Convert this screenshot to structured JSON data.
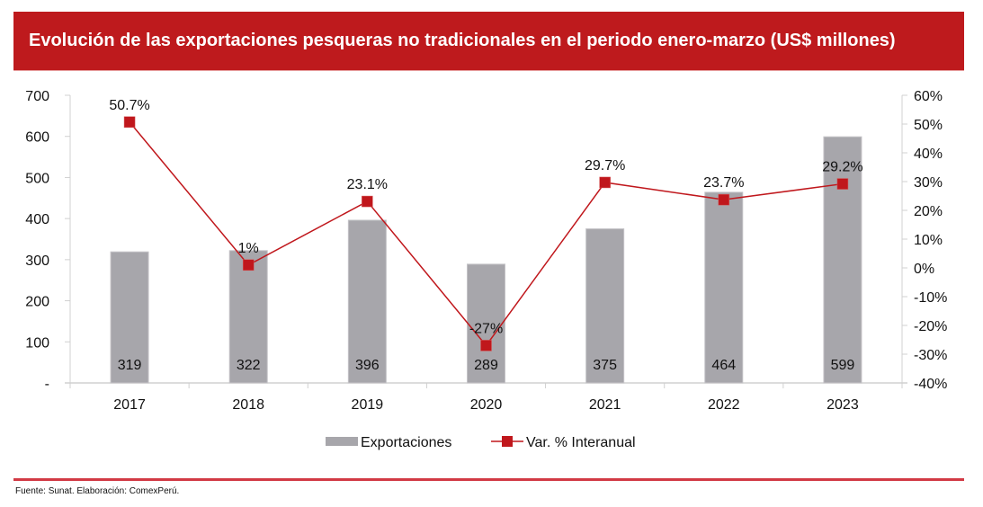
{
  "header": {
    "title": "Evolución de las exportaciones pesqueras no tradicionales en el periodo enero-marzo (US$ millones)"
  },
  "footer": {
    "source": "Fuente: Sunat. Elaboración: ComexPerú."
  },
  "colors": {
    "title_bg": "#be1a1d",
    "bar": "#a7a6ab",
    "line": "#c0171c",
    "footer_rule": "#d23a45"
  },
  "chart_data": {
    "type": "bar+line",
    "title": "Evolución de las exportaciones pesqueras no tradicionales en el periodo enero-marzo (US$ millones)",
    "categories": [
      "2017",
      "2018",
      "2019",
      "2020",
      "2021",
      "2022",
      "2023"
    ],
    "series": [
      {
        "name": "Exportaciones",
        "type": "bar",
        "axis": "left",
        "values": [
          319,
          322,
          396,
          289,
          375,
          464,
          599
        ],
        "labels": [
          "319",
          "322",
          "396",
          "289",
          "375",
          "464",
          "599"
        ]
      },
      {
        "name": "Var. % Interanual",
        "type": "line",
        "axis": "right",
        "marker": "square",
        "values": [
          50.7,
          1.0,
          23.1,
          -27.0,
          29.7,
          23.7,
          29.2
        ],
        "labels": [
          "50.7%",
          "1%",
          "23.1%",
          "-27%",
          "29.7%",
          "23.7%",
          "29.2%"
        ]
      }
    ],
    "left_axis": {
      "ylim": [
        0,
        700
      ],
      "ticks": [
        0,
        100,
        200,
        300,
        400,
        500,
        600,
        700
      ],
      "tick_labels": [
        "-",
        "100",
        "200",
        "300",
        "400",
        "500",
        "600",
        "700"
      ]
    },
    "right_axis": {
      "ylim": [
        -40,
        60
      ],
      "ticks": [
        -40,
        -30,
        -20,
        -10,
        0,
        10,
        20,
        30,
        40,
        50,
        60
      ],
      "tick_labels": [
        "-40%",
        "-30%",
        "-20%",
        "-10%",
        "0%",
        "10%",
        "20%",
        "30%",
        "40%",
        "50%",
        "60%"
      ]
    },
    "xlabel": "",
    "ylabel": "",
    "grid": false,
    "legend": {
      "position": "bottom",
      "entries": [
        "Exportaciones",
        "Var. % Interanual"
      ]
    }
  }
}
